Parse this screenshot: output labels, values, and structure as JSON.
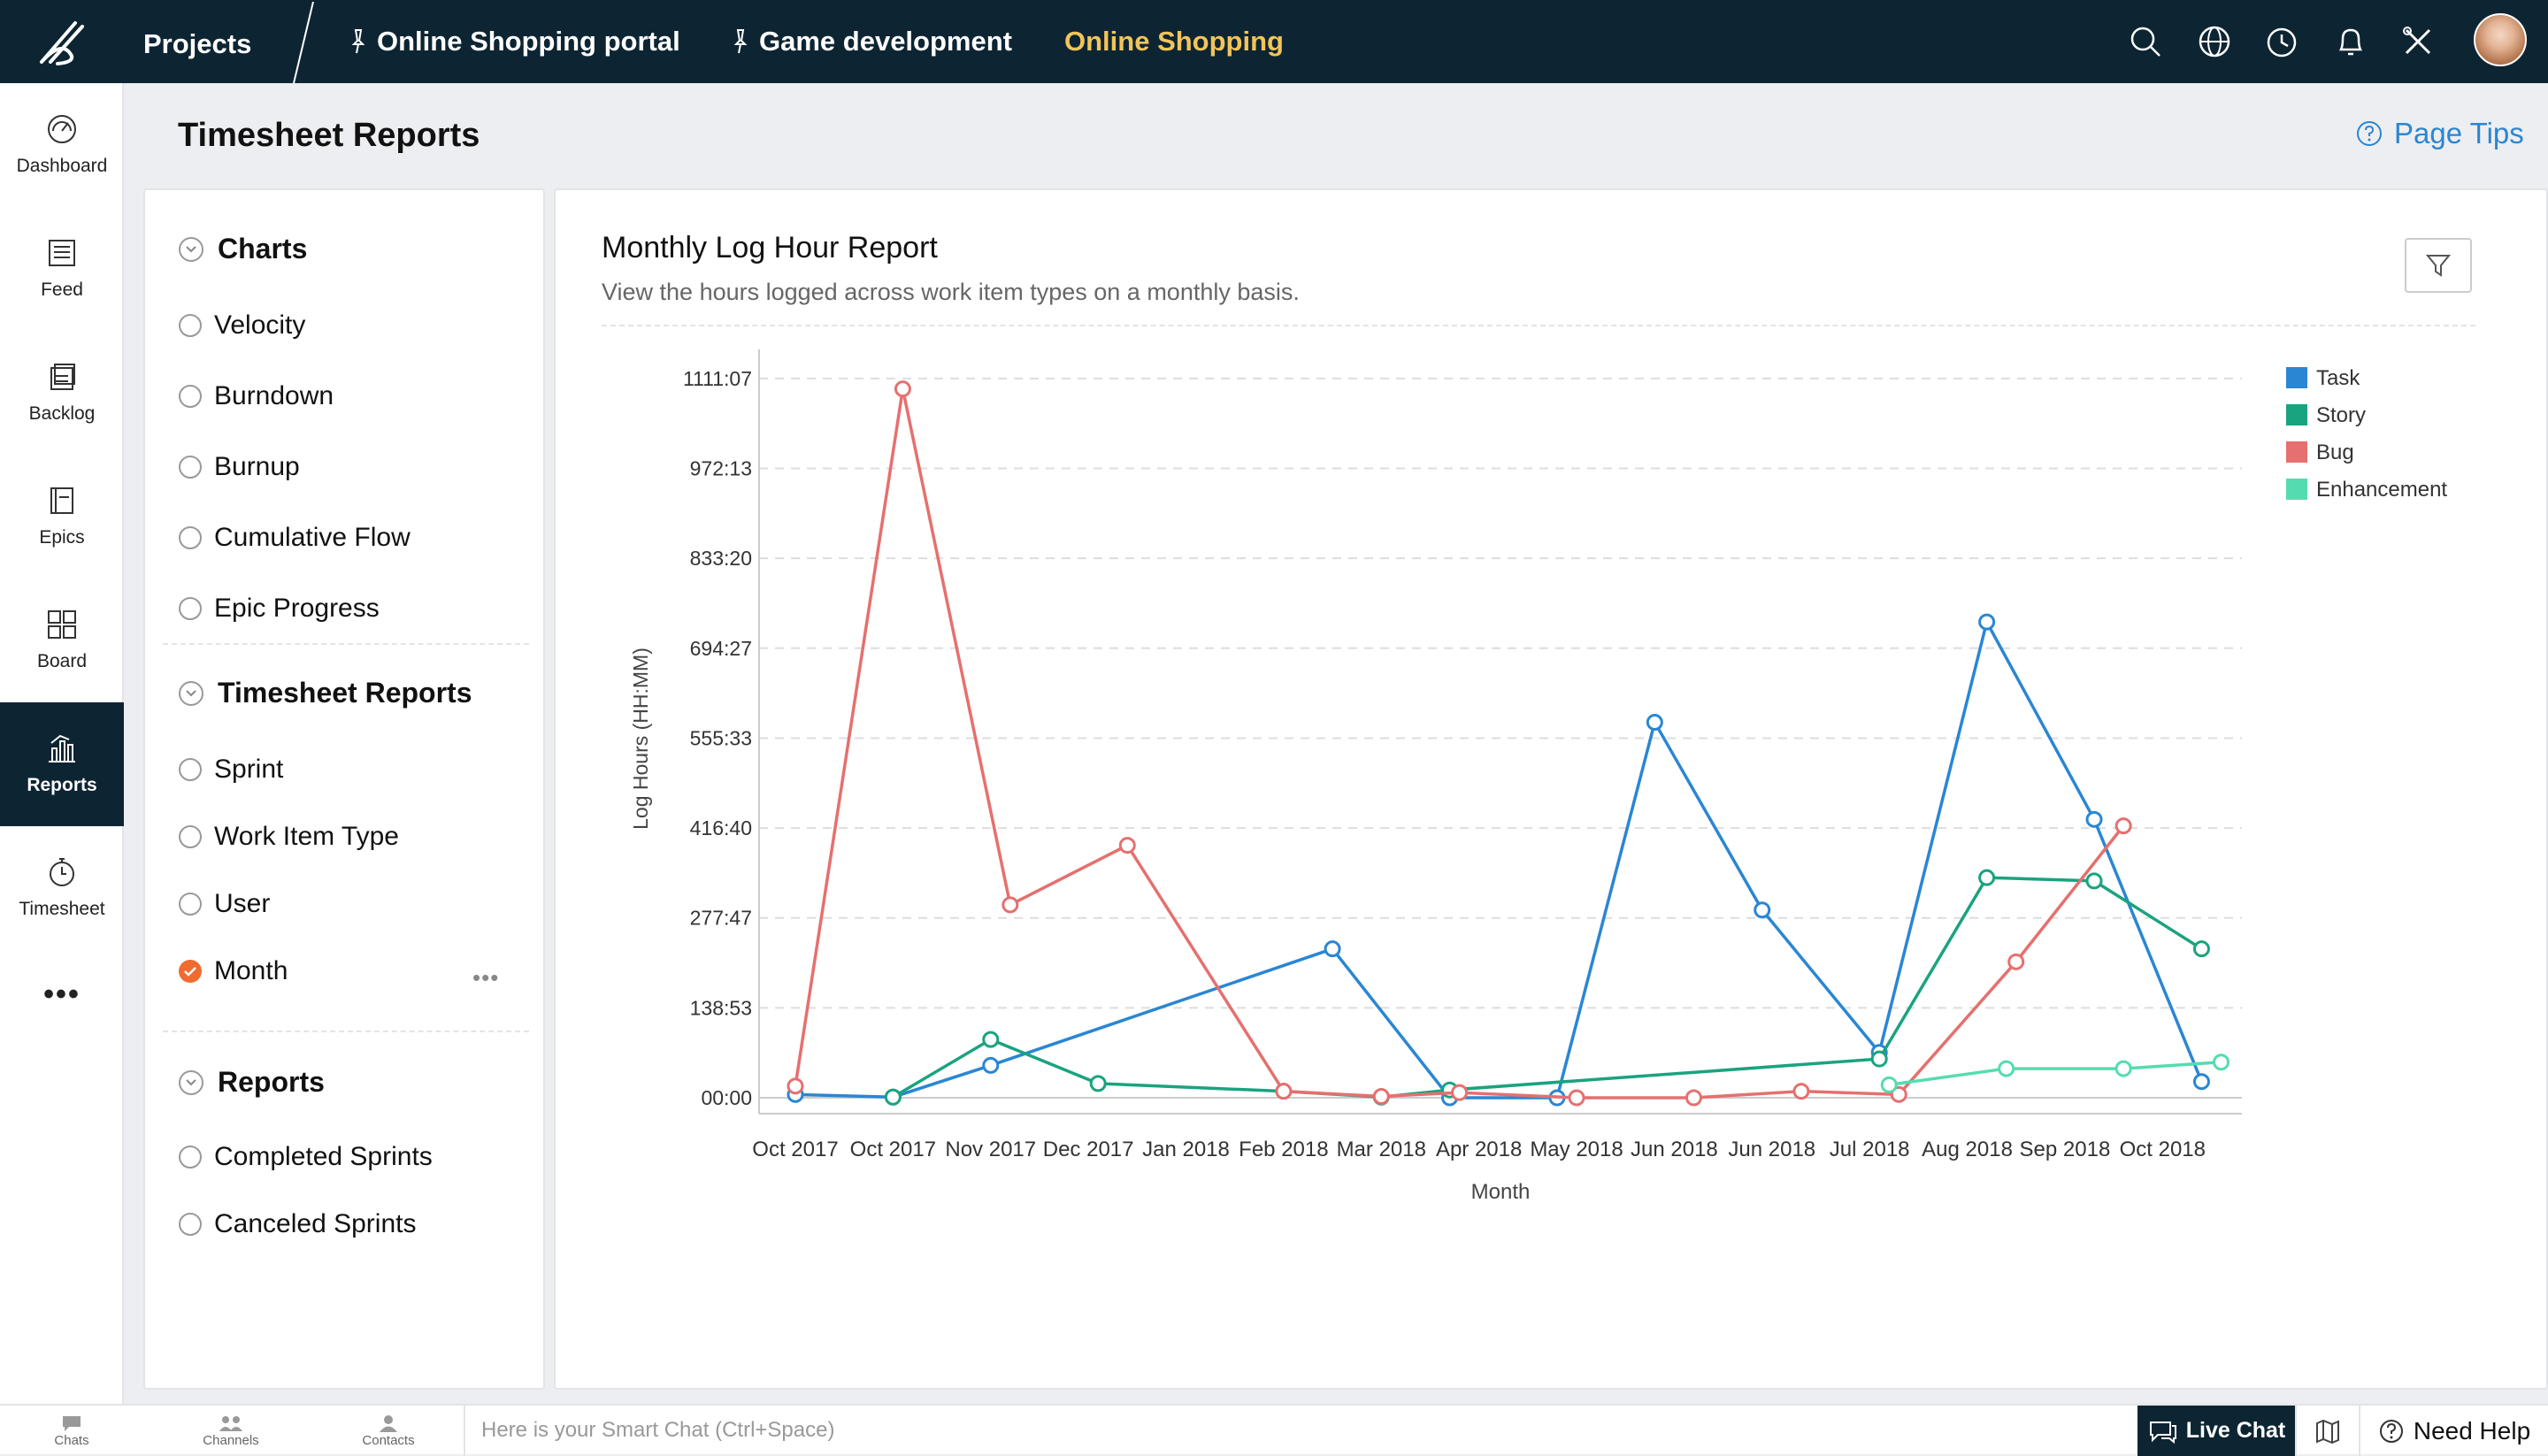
{
  "topbar": {
    "projects_label": "Projects",
    "nav": [
      {
        "label": "Online Shopping portal"
      },
      {
        "label": "Game development"
      },
      {
        "label": "Online Shopping"
      }
    ],
    "icons": [
      "search-icon",
      "globe-icon",
      "clock-icon",
      "bell-icon",
      "tools-icon",
      "avatar"
    ]
  },
  "sidebar": {
    "items": [
      {
        "label": "Dashboard",
        "icon": "speedometer-icon"
      },
      {
        "label": "Feed",
        "icon": "feed-icon"
      },
      {
        "label": "Backlog",
        "icon": "backlog-icon"
      },
      {
        "label": "Epics",
        "icon": "epics-icon"
      },
      {
        "label": "Board",
        "icon": "board-icon"
      },
      {
        "label": "Reports",
        "icon": "reports-icon",
        "active": true
      },
      {
        "label": "Timesheet",
        "icon": "stopwatch-icon"
      }
    ],
    "more": "•••"
  },
  "header": {
    "title": "Timesheet Reports",
    "page_tips": "Page Tips"
  },
  "report_nav": {
    "sections": [
      {
        "title": "Charts",
        "items": [
          "Velocity",
          "Burndown",
          "Burnup",
          "Cumulative Flow",
          "Epic Progress"
        ]
      },
      {
        "title": "Timesheet Reports",
        "items": [
          "Sprint",
          "Work Item Type",
          "User",
          "Month"
        ]
      },
      {
        "title": "Reports",
        "items": [
          "Completed Sprints",
          "Canceled Sprints"
        ]
      }
    ],
    "selected": "Month",
    "more_label": "•••"
  },
  "report": {
    "title": "Monthly Log Hour Report",
    "subtitle": "View the hours logged across work item types on a monthly basis."
  },
  "chart_data": {
    "type": "line",
    "xlabel": "Month",
    "ylabel": "Log Hours (HH:MM)",
    "x": [
      "Oct 2017",
      "Oct 2017",
      "Nov 2017",
      "Dec 2017",
      "Jan 2018",
      "Feb 2018",
      "Mar 2018",
      "Apr 2018",
      "May 2018",
      "Jun 2018",
      "Jun 2018",
      "Jul 2018",
      "Aug 2018",
      "Sep 2018",
      "Oct 2018"
    ],
    "y_ticks": [
      "00:00",
      "138:53",
      "277:47",
      "416:40",
      "555:33",
      "694:27",
      "833:20",
      "972:13",
      "1111:07"
    ],
    "ylim": [
      0,
      1111.12
    ],
    "legend_position": "top-right",
    "grid": true,
    "series": [
      {
        "name": "Task",
        "color": "#2a86d3",
        "points": [
          [
            0,
            5
          ],
          [
            1,
            1
          ],
          [
            2,
            50
          ],
          [
            5.5,
            230
          ],
          [
            6.7,
            0
          ],
          [
            7.8,
            0
          ],
          [
            8.8,
            580
          ],
          [
            9.9,
            290
          ],
          [
            11.1,
            70
          ],
          [
            12.2,
            735
          ],
          [
            13.3,
            430
          ],
          [
            14.4,
            25
          ]
        ]
      },
      {
        "name": "Story",
        "color": "#1aa37f",
        "points": [
          [
            1,
            1
          ],
          [
            2,
            90
          ],
          [
            3.1,
            22
          ],
          [
            5,
            10
          ],
          [
            6,
            1
          ],
          [
            6.7,
            12
          ],
          [
            11.1,
            60
          ],
          [
            12.2,
            340
          ],
          [
            13.3,
            335
          ],
          [
            14.4,
            230
          ]
        ]
      },
      {
        "name": "Bug",
        "color": "#e5706f",
        "points": [
          [
            0,
            18
          ],
          [
            1.1,
            1095
          ],
          [
            2.2,
            298
          ],
          [
            3.4,
            390
          ],
          [
            5,
            10
          ],
          [
            6,
            2
          ],
          [
            6.8,
            8
          ],
          [
            8,
            0
          ],
          [
            9.2,
            0
          ],
          [
            10.3,
            10
          ],
          [
            11.3,
            5
          ],
          [
            12.5,
            210
          ],
          [
            13.6,
            420
          ]
        ]
      },
      {
        "name": "Enhancement",
        "color": "#54dcb0",
        "points": [
          [
            11.2,
            20
          ],
          [
            12.4,
            45
          ],
          [
            13.6,
            45
          ],
          [
            14.6,
            55
          ]
        ]
      }
    ]
  },
  "bottombar": {
    "chats": "Chats",
    "channels": "Channels",
    "contacts": "Contacts",
    "smart_chat_placeholder": "Here is your Smart Chat (Ctrl+Space)",
    "live_chat": "Live Chat",
    "need_help": "Need Help"
  }
}
